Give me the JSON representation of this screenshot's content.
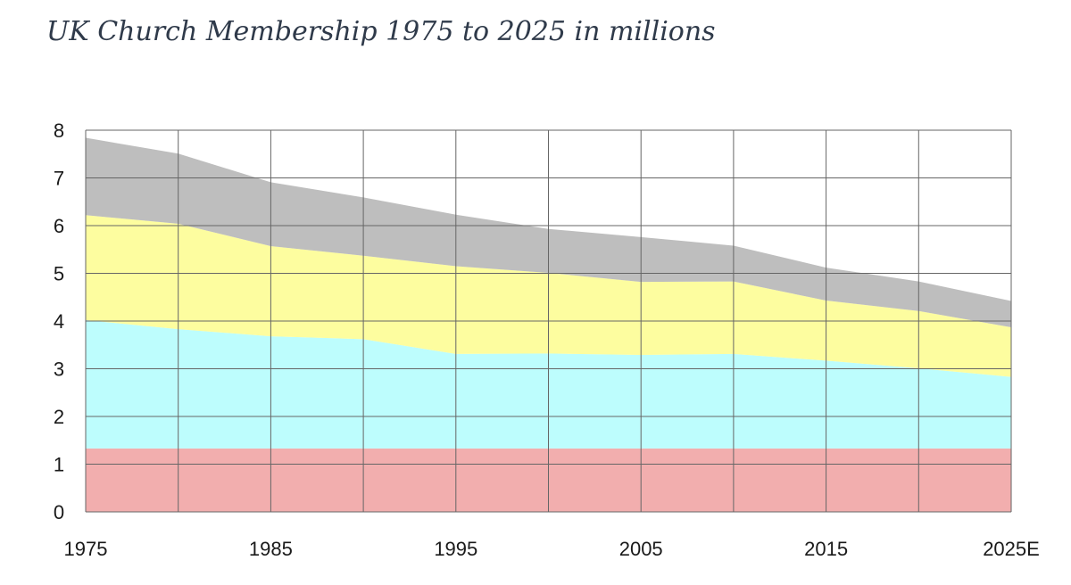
{
  "chart_data": {
    "type": "area",
    "stacked": true,
    "title": "UK Church Membership 1975 to 2025 in millions",
    "xlabel": "",
    "ylabel": "",
    "x": [
      1975,
      1980,
      1985,
      1990,
      1995,
      2000,
      2005,
      2010,
      2015,
      2020,
      2025
    ],
    "x_tick_labels": [
      {
        "x": 1975,
        "label": "1975"
      },
      {
        "x": 1985,
        "label": "1985"
      },
      {
        "x": 1995,
        "label": "1995"
      },
      {
        "x": 2005,
        "label": "2005"
      },
      {
        "x": 2015,
        "label": "2015"
      },
      {
        "x": 2025,
        "label": "2025E"
      }
    ],
    "xlim": [
      1975,
      2025
    ],
    "ylim": [
      0,
      8
    ],
    "y_ticks": [
      0,
      1,
      2,
      3,
      4,
      5,
      6,
      7,
      8
    ],
    "grid": true,
    "legend": "none",
    "series": [
      {
        "color": "#f2aeae",
        "values": [
          1.33,
          1.33,
          1.33,
          1.33,
          1.33,
          1.33,
          1.33,
          1.33,
          1.33,
          1.33,
          1.33
        ]
      },
      {
        "color": "#bdfdfd",
        "values": [
          2.69,
          2.5,
          2.35,
          2.29,
          1.98,
          1.99,
          1.96,
          1.98,
          1.84,
          1.68,
          1.5
        ]
      },
      {
        "color": "#fdfd9f",
        "values": [
          2.2,
          2.21,
          1.89,
          1.75,
          1.84,
          1.69,
          1.53,
          1.52,
          1.26,
          1.2,
          1.04
        ]
      },
      {
        "color": "#bebebe",
        "values": [
          1.62,
          1.47,
          1.34,
          1.22,
          1.08,
          0.92,
          0.94,
          0.75,
          0.69,
          0.62,
          0.55
        ]
      }
    ]
  }
}
